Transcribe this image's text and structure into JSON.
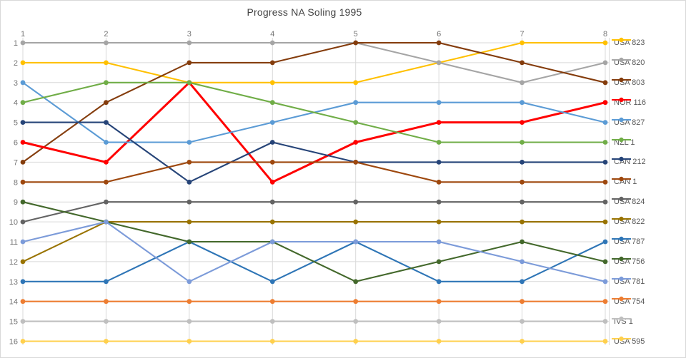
{
  "chart_data": {
    "type": "line",
    "title": "Progress NA Soling 1995",
    "x_axis": {
      "position": "top",
      "ticks": [
        "1",
        "2",
        "3",
        "4",
        "5",
        "6",
        "7",
        "8"
      ]
    },
    "y_axis": {
      "position": "left",
      "inverted": true,
      "ticks": [
        "1",
        "2",
        "3",
        "4",
        "5",
        "6",
        "7",
        "8",
        "9",
        "10",
        "11",
        "12",
        "13",
        "14",
        "15",
        "16"
      ]
    },
    "grid": true,
    "legend_position": "right",
    "x_range": [
      1,
      8
    ],
    "y_range": [
      1,
      16
    ],
    "series": [
      {
        "name": "USA 823",
        "color": "#FFC000",
        "positions": [
          2,
          2,
          3,
          3,
          3,
          2,
          1,
          1
        ]
      },
      {
        "name": "USA 820",
        "color": "#A5A5A5",
        "positions": [
          1,
          1,
          1,
          1,
          1,
          2,
          3,
          2
        ]
      },
      {
        "name": "USA 803",
        "color": "#843C0C",
        "positions": [
          7,
          4,
          2,
          2,
          1,
          1,
          2,
          3
        ]
      },
      {
        "name": "NOR 116",
        "color": "#FF0000",
        "positions": [
          6,
          7,
          3,
          8,
          6,
          5,
          5,
          4
        ]
      },
      {
        "name": "USA 827",
        "color": "#5B9BD5",
        "positions": [
          3,
          6,
          6,
          5,
          4,
          4,
          4,
          5
        ]
      },
      {
        "name": "NZL 1",
        "color": "#70AD47",
        "positions": [
          4,
          3,
          3,
          4,
          5,
          6,
          6,
          6
        ]
      },
      {
        "name": "CAN 212",
        "color": "#264478",
        "positions": [
          5,
          5,
          8,
          6,
          7,
          7,
          7,
          7
        ]
      },
      {
        "name": "CAN 1",
        "color": "#9E480E",
        "positions": [
          8,
          8,
          7,
          7,
          7,
          8,
          8,
          8
        ]
      },
      {
        "name": "USA 824",
        "color": "#636363",
        "positions": [
          10,
          9,
          9,
          9,
          9,
          9,
          9,
          9
        ]
      },
      {
        "name": "USA 822",
        "color": "#997300",
        "positions": [
          12,
          10,
          10,
          10,
          10,
          10,
          10,
          10
        ]
      },
      {
        "name": "USA 787",
        "color": "#2E75B6",
        "positions": [
          13,
          13,
          11,
          13,
          11,
          13,
          13,
          11
        ]
      },
      {
        "name": "USA 756",
        "color": "#43682B",
        "positions": [
          9,
          10,
          11,
          11,
          13,
          12,
          11,
          12
        ]
      },
      {
        "name": "USA 781",
        "color": "#7C9BD9",
        "positions": [
          11,
          10,
          13,
          11,
          11,
          11,
          12,
          13
        ]
      },
      {
        "name": "USA 754",
        "color": "#ED7D31",
        "positions": [
          14,
          14,
          14,
          14,
          14,
          14,
          14,
          14
        ]
      },
      {
        "name": "IVS 1",
        "color": "#BFBFBF",
        "positions": [
          15,
          15,
          15,
          15,
          15,
          15,
          15,
          15
        ]
      },
      {
        "name": "USA 595",
        "color": "#FFD04D",
        "positions": [
          16,
          16,
          16,
          16,
          16,
          16,
          16,
          16
        ]
      }
    ]
  },
  "colors": {
    "grid": "#D9D9D9",
    "tick_text": "#757575",
    "title_text": "#444444",
    "legend_text": "#595959",
    "frame_border": "#D9D9D9",
    "background": "#FFFFFF"
  }
}
